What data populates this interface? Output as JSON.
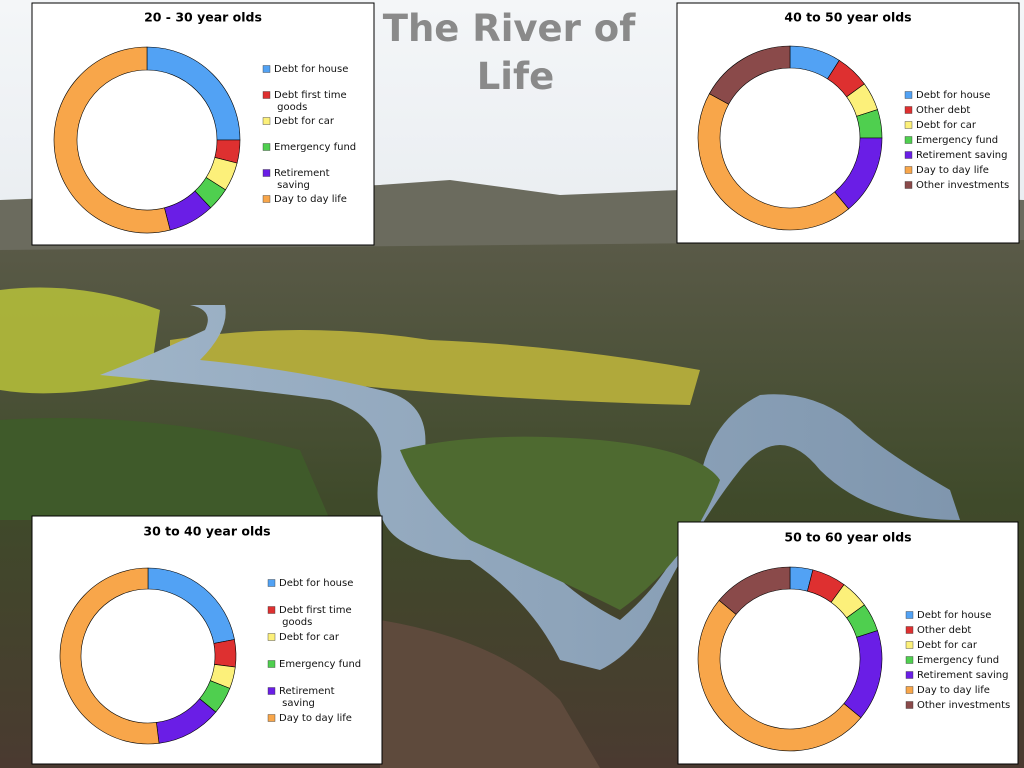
{
  "title": "The River of Life",
  "chart_data": [
    {
      "type": "pie",
      "title": "20 - 30 year olds",
      "categories": [
        "Debt for house",
        "Debt first time goods",
        "Debt for car",
        "Emergency fund",
        "Retirement saving",
        "Day to day life"
      ],
      "values": [
        25,
        4,
        5,
        4,
        8,
        54
      ],
      "colors": [
        "#52a2f4",
        "#de3030",
        "#fcf07a",
        "#4fcf4f",
        "#6a1ee6",
        "#f8a64a"
      ]
    },
    {
      "type": "pie",
      "title": "40 to 50 year olds",
      "categories": [
        "Debt for house",
        "Other debt",
        "Debt for car",
        "Emergency fund",
        "Retirement saving",
        "Day to day life",
        "Other investments"
      ],
      "values": [
        9,
        6,
        5,
        5,
        14,
        44,
        17
      ],
      "colors": [
        "#52a2f4",
        "#de3030",
        "#fcf07a",
        "#4fcf4f",
        "#6a1ee6",
        "#f8a64a",
        "#8a4a4a"
      ]
    },
    {
      "type": "pie",
      "title": "30 to 40 year olds",
      "categories": [
        "Debt for house",
        "Debt first time goods",
        "Debt for car",
        "Emergency fund",
        "Retirement saving",
        "Day to day life"
      ],
      "values": [
        22,
        5,
        4,
        5,
        12,
        52
      ],
      "colors": [
        "#52a2f4",
        "#de3030",
        "#fcf07a",
        "#4fcf4f",
        "#6a1ee6",
        "#f8a64a"
      ]
    },
    {
      "type": "pie",
      "title": "50 to 60 year olds",
      "categories": [
        "Debt for house",
        "Other debt",
        "Debt for car",
        "Emergency fund",
        "Retirement saving",
        "Day to day life",
        "Other investments"
      ],
      "values": [
        4,
        6,
        5,
        5,
        16,
        50,
        14
      ],
      "colors": [
        "#52a2f4",
        "#de3030",
        "#fcf07a",
        "#4fcf4f",
        "#6a1ee6",
        "#f8a64a",
        "#8a4a4a"
      ]
    }
  ]
}
